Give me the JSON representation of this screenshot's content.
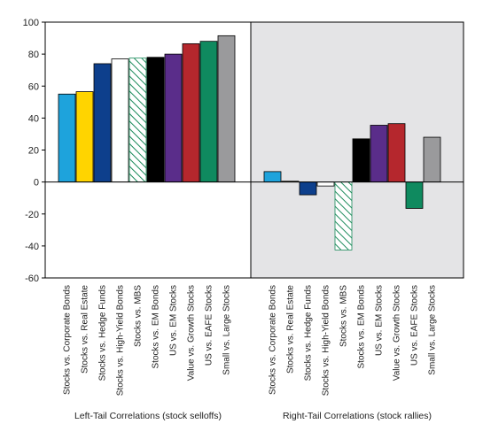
{
  "chart_data": {
    "type": "bar",
    "ylim": [
      -60,
      100
    ],
    "yticks": [
      100,
      80,
      60,
      40,
      20,
      0,
      -20,
      -40,
      -60
    ],
    "grid": false,
    "legend": "none",
    "colors": [
      "#1ea3dc",
      "#ffd400",
      "#0d3f8c",
      "#ffffff",
      "hatch-green",
      "#000000",
      "#5a2d8a",
      "#b5272d",
      "#0f8a5f",
      "#9a9a9c"
    ],
    "categories": [
      "Stocks vs. Corporate Bonds",
      "Stocks vs. Real Estate",
      "Stocks vs. Hedge Funds",
      "Stocks vs. High-Yield Bonds",
      "Stocks vs. MBS",
      "Stocks vs. EM Bonds",
      "US vs. EM Stocks",
      "Value vs. Growth Stocks",
      "US vs. EAFE Stocks",
      "Small vs. Large Stocks"
    ],
    "groups": [
      {
        "label": "Left-Tail Correlations (stock selloffs)",
        "values": [
          55,
          56.5,
          74,
          77,
          77.5,
          78,
          80,
          86.5,
          88,
          91.5
        ]
      },
      {
        "label": "Right-Tail Correlations (stock rallies)",
        "values": [
          6.5,
          0.5,
          -8,
          -2.5,
          -42.5,
          27,
          35.5,
          36.5,
          -16.5,
          28
        ]
      }
    ]
  }
}
